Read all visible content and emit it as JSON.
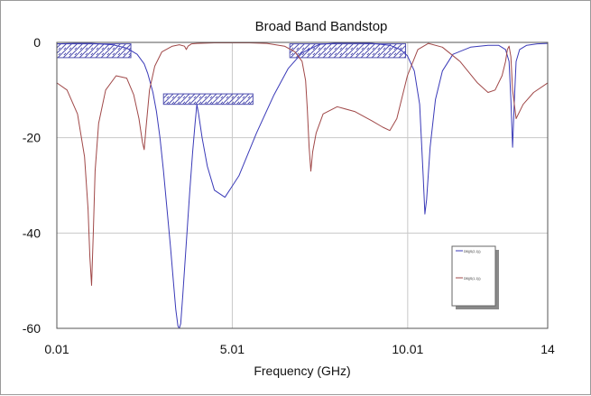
{
  "chart_data": {
    "type": "line",
    "title": "Broad Band Bandstop",
    "xlabel": "Frequency (GHz)",
    "ylabel": "",
    "xlim": [
      0.01,
      14
    ],
    "ylim": [
      -60,
      0
    ],
    "x_ticks": [
      0.01,
      5.01,
      10.01,
      14
    ],
    "x_tick_labels": [
      "0.01",
      "5.01",
      "10.01",
      "14"
    ],
    "y_ticks": [
      0,
      -20,
      -40,
      -60
    ],
    "y_tick_labels": [
      "0",
      "-20",
      "-40",
      "-60"
    ],
    "grid": true,
    "legend": {
      "placement": "bottom-right",
      "entries": [
        "DB(|S(2,1)|)",
        "DB(|S(1,1)|)"
      ]
    },
    "series": [
      {
        "color": "#3a3ab8",
        "x": [
          0.01,
          0.5,
          1.0,
          1.6,
          2.0,
          2.3,
          2.5,
          2.6,
          2.75,
          2.85,
          2.95,
          3.05,
          3.15,
          3.25,
          3.33,
          3.4,
          3.46,
          3.5,
          3.54,
          3.6,
          3.7,
          3.8,
          3.88,
          3.95,
          4.0,
          4.05,
          4.15,
          4.3,
          4.5,
          4.8,
          5.2,
          5.7,
          6.2,
          6.6,
          7.0,
          7.5,
          8.0,
          8.5,
          9.0,
          9.5,
          9.8,
          10.0,
          10.2,
          10.35,
          10.45,
          10.5,
          10.55,
          10.65,
          10.8,
          11.0,
          11.3,
          11.8,
          12.3,
          12.6,
          12.8,
          12.9,
          12.95,
          13.0,
          13.05,
          13.1,
          13.2,
          13.4,
          13.7,
          14.0
        ],
        "y": [
          -0.3,
          -0.2,
          -0.2,
          -0.5,
          -1.2,
          -2.5,
          -4.5,
          -6.5,
          -10.5,
          -14.5,
          -20,
          -27,
          -35,
          -43,
          -50,
          -56,
          -59.5,
          -60,
          -59,
          -53,
          -42,
          -31,
          -23,
          -17,
          -13,
          -15,
          -20,
          -26,
          -31,
          -32.5,
          -28,
          -19,
          -11,
          -5.5,
          -2.2,
          -0.4,
          -0.15,
          -0.1,
          -0.2,
          -0.6,
          -1.5,
          -2.8,
          -6,
          -13,
          -28,
          -36,
          -33,
          -22,
          -12,
          -6,
          -2.5,
          -1,
          -0.6,
          -0.6,
          -1.5,
          -4,
          -12,
          -22,
          -12,
          -4,
          -1.5,
          -0.6,
          -0.3,
          -0.2
        ]
      },
      {
        "color": "#a04848",
        "x": [
          0.01,
          0.3,
          0.6,
          0.8,
          0.9,
          0.95,
          1.0,
          1.05,
          1.1,
          1.2,
          1.4,
          1.7,
          2.0,
          2.2,
          2.35,
          2.45,
          2.5,
          2.55,
          2.65,
          2.8,
          3.0,
          3.3,
          3.5,
          3.65,
          3.7,
          3.75,
          3.85,
          4.0,
          4.5,
          5.0,
          5.5,
          6.0,
          6.5,
          6.8,
          7.0,
          7.1,
          7.15,
          7.2,
          7.25,
          7.3,
          7.4,
          7.6,
          8.0,
          8.5,
          9.0,
          9.3,
          9.5,
          9.7,
          10.0,
          10.3,
          10.6,
          11.0,
          11.5,
          12.0,
          12.3,
          12.5,
          12.7,
          12.8,
          12.85,
          12.9,
          12.95,
          13.0,
          13.1,
          13.3,
          13.6,
          14.0
        ],
        "y": [
          -8.5,
          -10,
          -15,
          -24,
          -35,
          -45,
          -51,
          -40,
          -27,
          -17,
          -10,
          -7,
          -7.5,
          -11,
          -16,
          -21,
          -22.5,
          -18,
          -10,
          -5,
          -2,
          -0.8,
          -0.5,
          -0.8,
          -1.5,
          -0.8,
          -0.3,
          -0.2,
          -0.1,
          -0.1,
          -0.1,
          -0.2,
          -0.8,
          -2,
          -4,
          -8,
          -14,
          -22,
          -27,
          -23,
          -19,
          -15,
          -13.5,
          -14.5,
          -16.5,
          -17.8,
          -18.5,
          -16,
          -7,
          -1.5,
          -0.2,
          -1,
          -4,
          -8.5,
          -10.5,
          -10,
          -7,
          -4,
          -1.5,
          -0.8,
          -3,
          -10,
          -16,
          -13,
          -10.5,
          -8.5
        ]
      }
    ],
    "specification_boxes": [
      {
        "x_start": 0.01,
        "x_end": 2.12,
        "y_top": -0.3,
        "y_bottom": -3.2
      },
      {
        "x_start": 3.05,
        "x_end": 5.6,
        "y_top": -10.8,
        "y_bottom": -13.0
      },
      {
        "x_start": 6.65,
        "x_end": 9.95,
        "y_top": -0.3,
        "y_bottom": -3.2
      }
    ]
  }
}
